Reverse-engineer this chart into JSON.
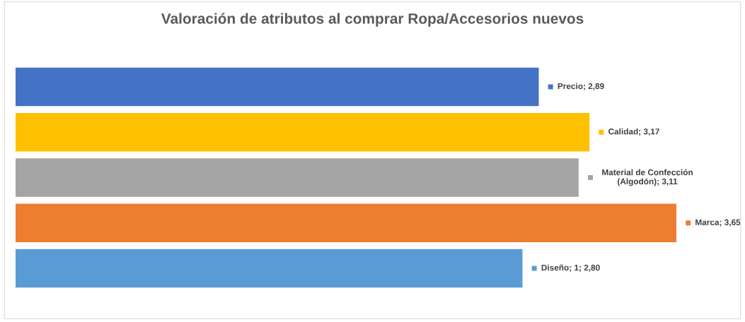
{
  "chart_data": {
    "type": "bar",
    "orientation": "horizontal",
    "title": "Valoración de atributos al comprar Ropa/Accesorios nuevos",
    "categories": [
      null,
      null,
      null,
      null,
      null
    ],
    "values": [
      2.89,
      3.17,
      3.11,
      3.65,
      2.8
    ],
    "colors": [
      "#4472c4",
      "#ffc000",
      "#a5a5a5",
      "#ed7d31",
      "#5b9bd5"
    ],
    "value_labels": [
      "Precio; 2,89",
      "Calidad; 3,17",
      "Material de Confección\n(Algodón); 3,11",
      "Marca; 3,65",
      "Diseño; 1; 2,80"
    ],
    "grid": false,
    "legend": false
  }
}
